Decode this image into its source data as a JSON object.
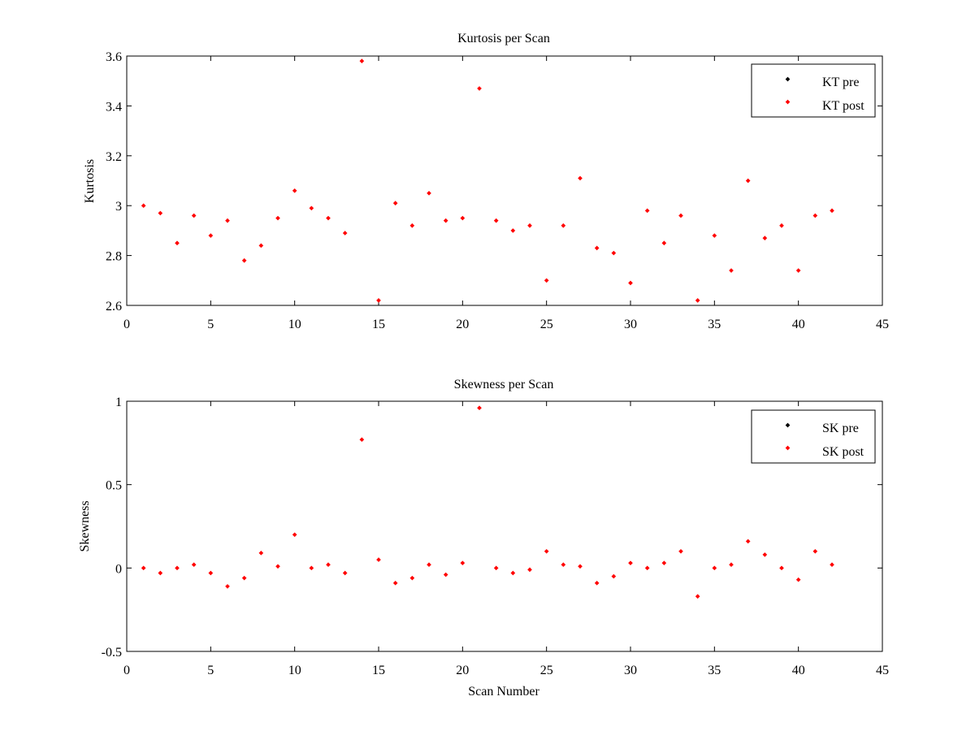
{
  "chart_data": [
    {
      "type": "scatter",
      "title": "Kurtosis per Scan",
      "xlabel": "",
      "ylabel": "Kurtosis",
      "xlim": [
        0,
        45
      ],
      "ylim": [
        2.6,
        3.6
      ],
      "xticks": [
        "0",
        "5",
        "10",
        "15",
        "20",
        "25",
        "30",
        "35",
        "40",
        "45"
      ],
      "yticks": [
        "2.6",
        "2.8",
        "3",
        "3.2",
        "3.4",
        "3.6"
      ],
      "grid": false,
      "legend_position": "top-right",
      "series": [
        {
          "name": "KT pre",
          "color": "#000000",
          "x": [],
          "y": []
        },
        {
          "name": "KT post",
          "color": "#ff0000",
          "x": [
            1,
            2,
            3,
            4,
            5,
            6,
            7,
            8,
            9,
            10,
            11,
            12,
            13,
            14,
            15,
            16,
            17,
            18,
            19,
            20,
            21,
            22,
            23,
            24,
            25,
            26,
            27,
            28,
            29,
            30,
            31,
            32,
            33,
            34,
            35,
            36,
            37,
            38,
            39,
            40,
            41,
            42
          ],
          "y": [
            3.0,
            2.97,
            2.85,
            2.96,
            2.88,
            2.94,
            2.78,
            2.84,
            2.95,
            3.06,
            2.99,
            2.95,
            2.89,
            3.58,
            2.62,
            3.01,
            2.92,
            3.05,
            2.94,
            2.95,
            3.47,
            2.94,
            2.9,
            2.92,
            2.7,
            2.92,
            3.11,
            2.83,
            2.81,
            2.69,
            2.98,
            2.85,
            2.96,
            2.62,
            2.88,
            2.74,
            3.1,
            2.87,
            2.92,
            2.74,
            2.96,
            2.98
          ]
        }
      ]
    },
    {
      "type": "scatter",
      "title": "Skewness per Scan",
      "xlabel": "Scan Number",
      "ylabel": "Skewness",
      "xlim": [
        0,
        45
      ],
      "ylim": [
        -0.5,
        1
      ],
      "xticks": [
        "0",
        "5",
        "10",
        "15",
        "20",
        "25",
        "30",
        "35",
        "40",
        "45"
      ],
      "yticks": [
        "-0.5",
        "0",
        "0.5",
        "1"
      ],
      "grid": false,
      "legend_position": "top-right",
      "series": [
        {
          "name": "SK pre",
          "color": "#000000",
          "x": [],
          "y": []
        },
        {
          "name": "SK post",
          "color": "#ff0000",
          "x": [
            1,
            2,
            3,
            4,
            5,
            6,
            7,
            8,
            9,
            10,
            11,
            12,
            13,
            14,
            15,
            16,
            17,
            18,
            19,
            20,
            21,
            22,
            23,
            24,
            25,
            26,
            27,
            28,
            29,
            30,
            31,
            32,
            33,
            34,
            35,
            36,
            37,
            38,
            39,
            40,
            41,
            42
          ],
          "y": [
            0.0,
            -0.03,
            0.0,
            0.02,
            -0.03,
            -0.11,
            -0.06,
            0.09,
            0.01,
            0.2,
            0.0,
            0.02,
            -0.03,
            0.77,
            0.05,
            -0.09,
            -0.06,
            0.02,
            -0.04,
            0.03,
            0.96,
            0.0,
            -0.03,
            -0.01,
            0.1,
            0.02,
            0.01,
            -0.09,
            -0.05,
            0.03,
            0.0,
            0.03,
            0.1,
            -0.17,
            0.0,
            0.02,
            0.16,
            0.08,
            0.0,
            -0.07,
            0.1,
            0.02
          ]
        }
      ]
    }
  ]
}
